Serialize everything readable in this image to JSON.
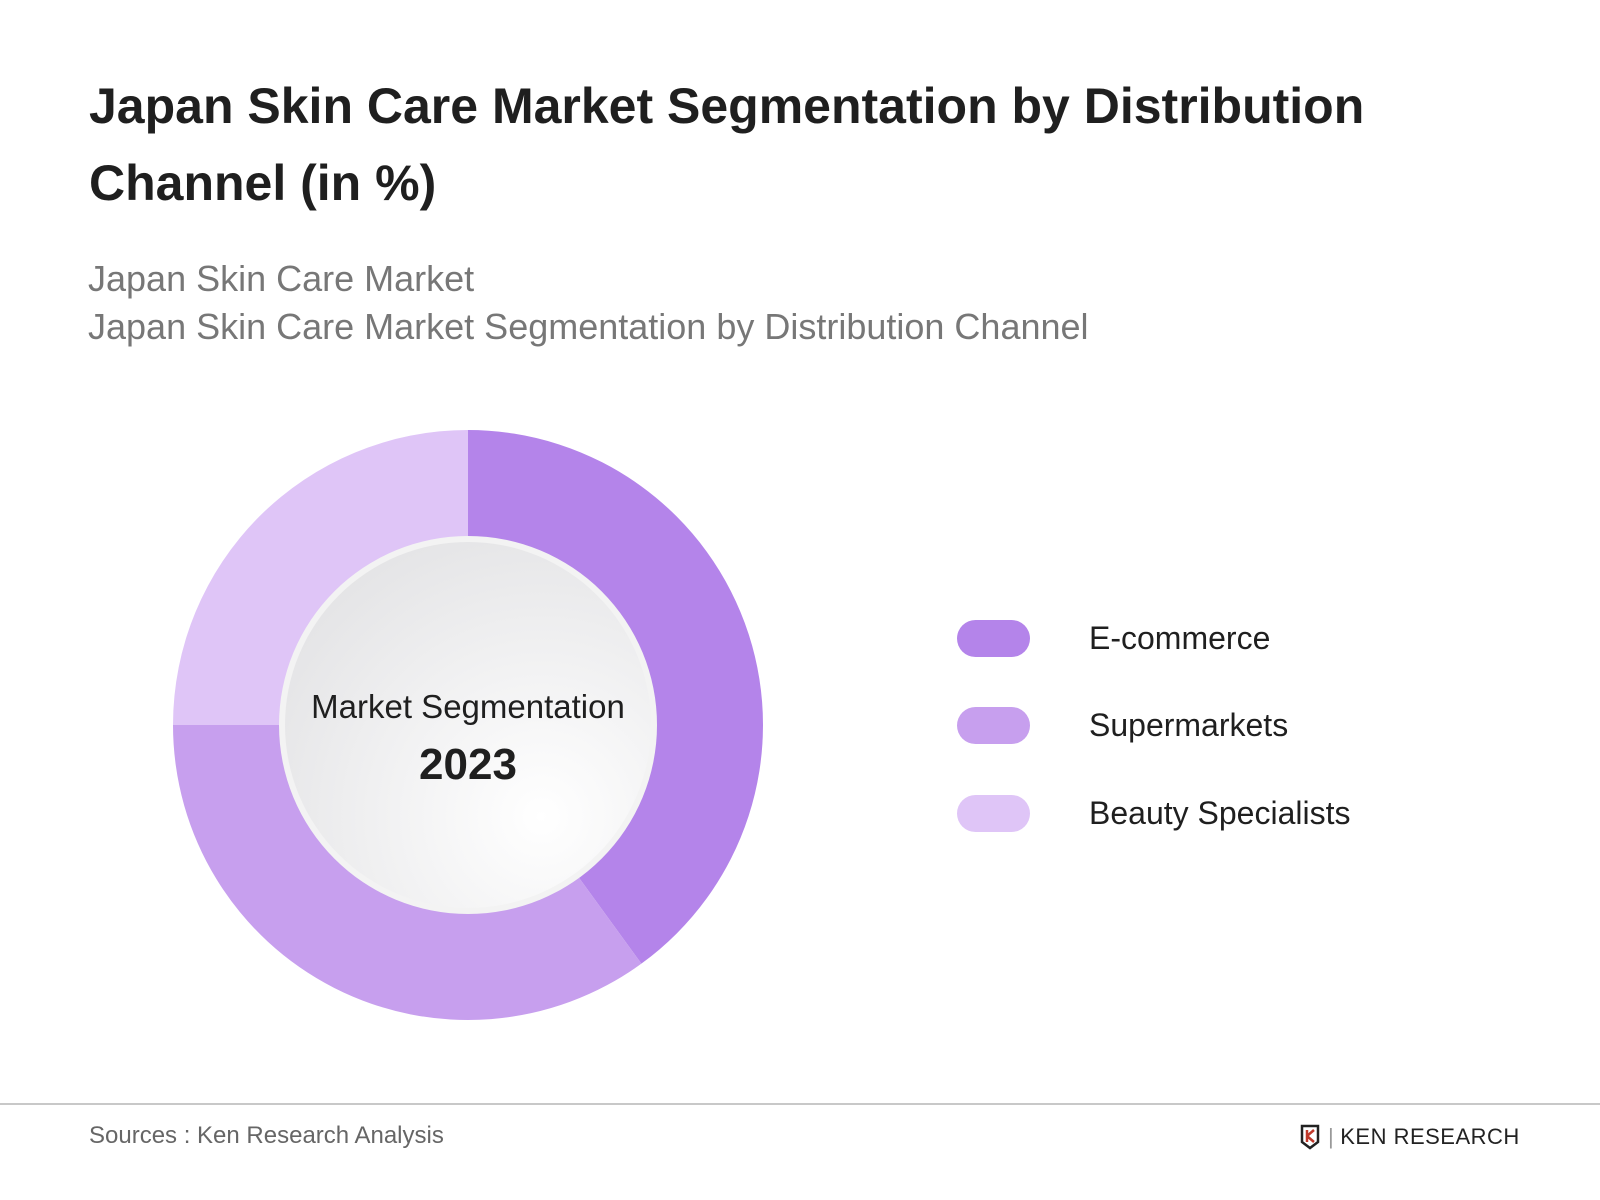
{
  "header": {
    "title": "Japan Skin Care Market Segmentation by Distribution Channel (in %)",
    "subtitle_1": "Japan Skin Care Market",
    "subtitle_2": "Japan Skin Care Market Segmentation by Distribution Channel"
  },
  "chart_data": {
    "type": "pie",
    "variant": "donut",
    "center_label": "Market Segmentation",
    "center_year": "2023",
    "categories": [
      "E-commerce",
      "Supermarkets",
      "Beauty Specialists"
    ],
    "values": [
      40,
      35,
      25
    ],
    "colors": [
      "#b484ea",
      "#c79fee",
      "#dfc5f7"
    ],
    "legend_position": "right"
  },
  "footer": {
    "source": "Sources : Ken Research Analysis",
    "logo_text": "KEN RESEARCH"
  }
}
